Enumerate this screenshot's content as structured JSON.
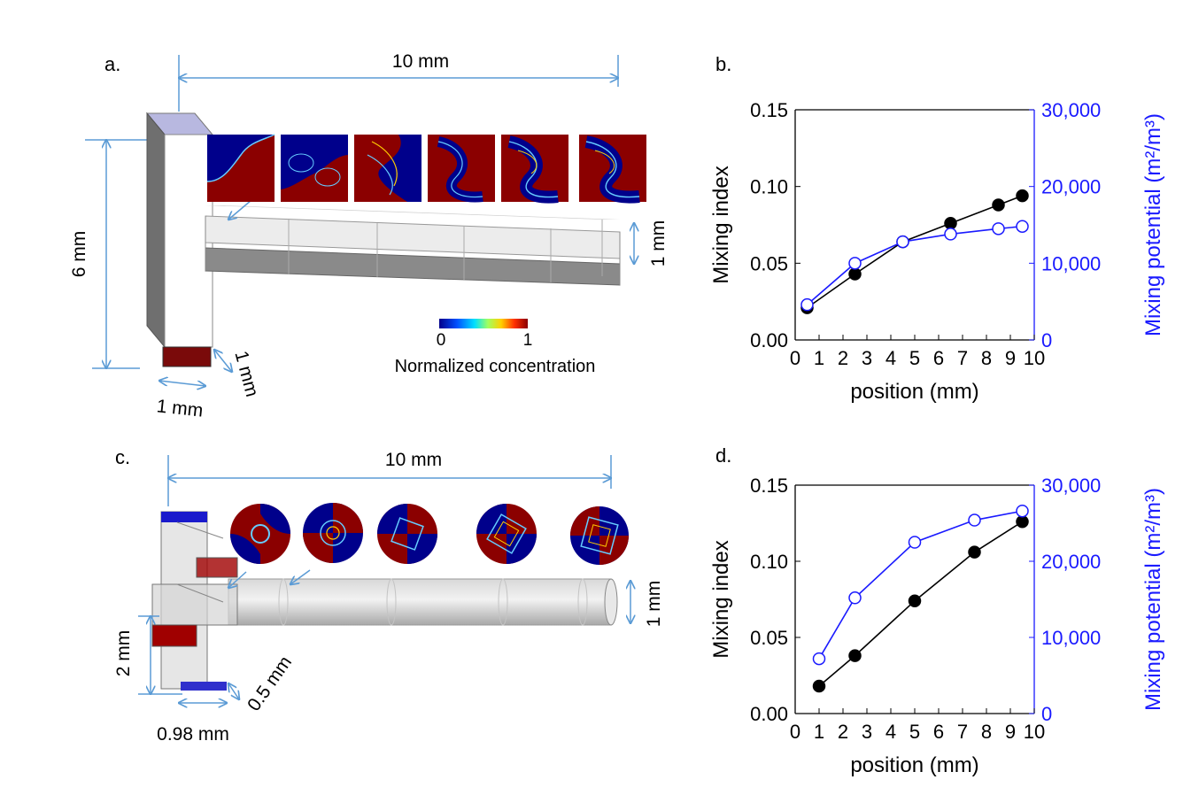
{
  "panel_a": {
    "label": "a.",
    "dim_length": "10 mm",
    "dim_height": "6 mm",
    "dim_channel": "1 mm",
    "dim_inlet_depth": "1 mm",
    "dim_inlet_width": "1 mm",
    "colorbar_min": "0",
    "colorbar_max": "1",
    "colorbar_title": "Normalized concentration"
  },
  "panel_c": {
    "label": "c.",
    "dim_length": "10 mm",
    "dim_channel": "1 mm",
    "dim_inlet_height": "2 mm",
    "dim_inlet_depth": "0.5 mm",
    "dim_inlet_width": "0.98 mm"
  },
  "colors": {
    "line_mixing_index": "#000000",
    "line_mixing_potential": "#1a1aff",
    "dimension_lines": "#5b9bd5",
    "red_fluid": "#8b0000",
    "blue_fluid": "#00008b"
  },
  "chart_data": [
    {
      "panel": "b.",
      "type": "line",
      "xlabel": "position (mm)",
      "ylabel": "Mixing index",
      "ylabel_right": "Mixing potential (m²/m³)",
      "xlim": [
        0,
        10
      ],
      "ylim": [
        0,
        0.15
      ],
      "ylim_right": [
        0,
        30000
      ],
      "x_ticks": [
        "0",
        "1",
        "2",
        "3",
        "4",
        "5",
        "6",
        "7",
        "8",
        "9",
        "10"
      ],
      "y_ticks": [
        "0.00",
        "0.05",
        "0.10",
        "0.15"
      ],
      "y_ticks_right": [
        "0",
        "10,000",
        "20,000",
        "30,000"
      ],
      "series": [
        {
          "name": "Mixing index",
          "axis": "left",
          "marker": "filled",
          "x": [
            0.5,
            2.5,
            4.5,
            6.5,
            8.5,
            9.5
          ],
          "values": [
            0.021,
            0.043,
            0.064,
            0.076,
            0.088,
            0.094
          ]
        },
        {
          "name": "Mixing potential",
          "axis": "right",
          "marker": "open",
          "x": [
            0.5,
            2.5,
            4.5,
            6.5,
            8.5,
            9.5
          ],
          "values": [
            4600,
            10000,
            12800,
            13800,
            14500,
            14800
          ]
        }
      ]
    },
    {
      "panel": "d.",
      "type": "line",
      "xlabel": "position (mm)",
      "ylabel": "Mixing index",
      "ylabel_right": "Mixing potential (m²/m³)",
      "xlim": [
        0,
        10
      ],
      "ylim": [
        0,
        0.15
      ],
      "ylim_right": [
        0,
        30000
      ],
      "x_ticks": [
        "0",
        "1",
        "2",
        "3",
        "4",
        "5",
        "6",
        "7",
        "8",
        "9",
        "10"
      ],
      "y_ticks": [
        "0.00",
        "0.05",
        "0.10",
        "0.15"
      ],
      "y_ticks_right": [
        "0",
        "10,000",
        "20,000",
        "30,000"
      ],
      "series": [
        {
          "name": "Mixing index",
          "axis": "left",
          "marker": "filled",
          "x": [
            1,
            2.5,
            5,
            7.5,
            9.5
          ],
          "values": [
            0.018,
            0.038,
            0.074,
            0.106,
            0.126
          ]
        },
        {
          "name": "Mixing potential",
          "axis": "right",
          "marker": "open",
          "x": [
            1,
            2.5,
            5,
            7.5,
            9.5
          ],
          "values": [
            7200,
            15200,
            22500,
            25400,
            26600
          ]
        }
      ]
    }
  ]
}
